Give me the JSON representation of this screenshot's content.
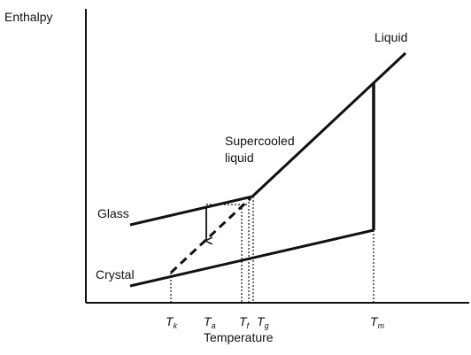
{
  "axes": {
    "y_label": "Enthalpy",
    "x_label": "Temperature"
  },
  "regions": {
    "glass": "Glass",
    "crystal": "Crystal",
    "supercooled": [
      "Supercooled",
      "liquid"
    ],
    "liquid": "Liquid"
  },
  "ticks": [
    {
      "main": "T",
      "sub": "k"
    },
    {
      "main": "T",
      "sub": "a"
    },
    {
      "main": "T",
      "sub": "f"
    },
    {
      "main": "T",
      "sub": "g"
    },
    {
      "main": "T",
      "sub": "m"
    }
  ]
}
